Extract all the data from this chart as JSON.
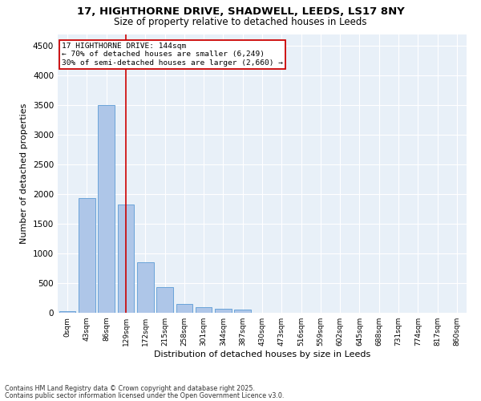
{
  "title_line1": "17, HIGHTHORNE DRIVE, SHADWELL, LEEDS, LS17 8NY",
  "title_line2": "Size of property relative to detached houses in Leeds",
  "xlabel": "Distribution of detached houses by size in Leeds",
  "ylabel": "Number of detached properties",
  "categories": [
    "0sqm",
    "43sqm",
    "86sqm",
    "129sqm",
    "172sqm",
    "215sqm",
    "258sqm",
    "301sqm",
    "344sqm",
    "387sqm",
    "430sqm",
    "473sqm",
    "516sqm",
    "559sqm",
    "602sqm",
    "645sqm",
    "688sqm",
    "731sqm",
    "774sqm",
    "817sqm",
    "860sqm"
  ],
  "values": [
    30,
    1930,
    3500,
    1820,
    850,
    430,
    155,
    100,
    65,
    50,
    0,
    0,
    0,
    0,
    0,
    0,
    0,
    0,
    0,
    0,
    0
  ],
  "bar_color": "#aec6e8",
  "bar_edge_color": "#5b9bd5",
  "vline_x": 3,
  "vline_color": "#cc0000",
  "annotation_line1": "17 HIGHTHORNE DRIVE: 144sqm",
  "annotation_line2": "← 70% of detached houses are smaller (6,249)",
  "annotation_line3": "30% of semi-detached houses are larger (2,660) →",
  "annotation_box_color": "#cc0000",
  "ylim": [
    0,
    4700
  ],
  "yticks": [
    0,
    500,
    1000,
    1500,
    2000,
    2500,
    3000,
    3500,
    4000,
    4500
  ],
  "footnote_line1": "Contains HM Land Registry data © Crown copyright and database right 2025.",
  "footnote_line2": "Contains public sector information licensed under the Open Government Licence v3.0.",
  "plot_bg_color": "#e8f0f8",
  "fig_bg_color": "#ffffff",
  "grid_color": "#ffffff"
}
